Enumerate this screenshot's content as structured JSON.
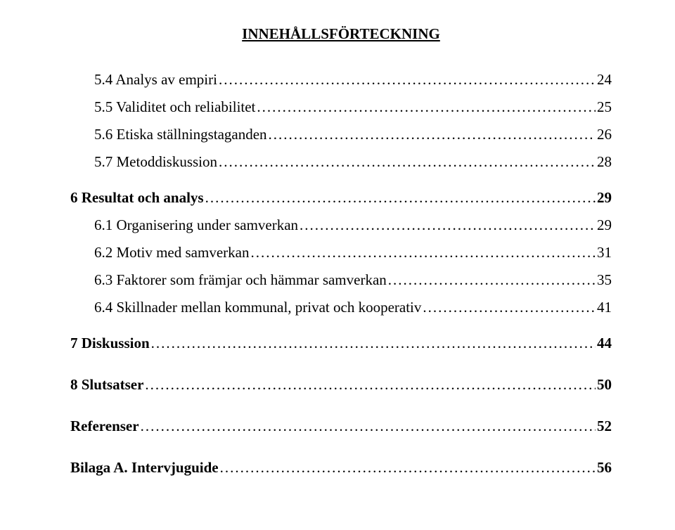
{
  "header": "INNEHÅLLSFÖRTECKNING",
  "leader_char": ".",
  "leader_repeat": 160,
  "entries": [
    {
      "title": "5.4 Analys av empiri",
      "page": "24",
      "bold": false,
      "indent": true
    },
    {
      "title": "5.5 Validitet och reliabilitet",
      "page": "25",
      "bold": false,
      "indent": true
    },
    {
      "title": "5.6 Etiska ställningstaganden",
      "page": "26",
      "bold": false,
      "indent": true
    },
    {
      "title": "5.7 Metoddiskussion",
      "page": "28",
      "bold": false,
      "indent": true
    },
    {
      "gap": "small"
    },
    {
      "title": "6 Resultat och analys",
      "page": "29",
      "bold": true,
      "indent": false
    },
    {
      "title": "6.1 Organisering under samverkan",
      "page": "29",
      "bold": false,
      "indent": true
    },
    {
      "title": "6.2 Motiv med samverkan",
      "page": "31",
      "bold": false,
      "indent": true
    },
    {
      "title": "6.3 Faktorer som främjar och hämmar samverkan",
      "page": "35",
      "bold": false,
      "indent": true
    },
    {
      "title": "6.4 Skillnader mellan kommunal, privat och kooperativ",
      "page": "41",
      "bold": false,
      "indent": true
    },
    {
      "gap": "small"
    },
    {
      "title": "7 Diskussion",
      "page": "44",
      "bold": true,
      "indent": false
    },
    {
      "gap": "large"
    },
    {
      "title": "8 Slutsatser",
      "page": "50",
      "bold": true,
      "indent": false
    },
    {
      "gap": "large"
    },
    {
      "title": "Referenser",
      "page": "52",
      "bold": true,
      "indent": false
    },
    {
      "gap": "large"
    },
    {
      "title": "Bilaga A. Intervjuguide",
      "page": "56",
      "bold": true,
      "indent": false
    }
  ]
}
